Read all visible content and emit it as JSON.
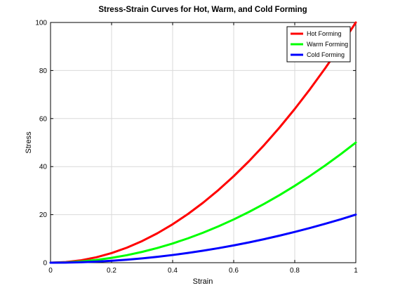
{
  "chart_data": {
    "type": "line",
    "title": "Stress-Strain Curves for Hot, Warm, and Cold Forming",
    "xlabel": "Strain",
    "ylabel": "Stress",
    "xlim": [
      0,
      1
    ],
    "ylim": [
      0,
      100
    ],
    "xticks": [
      0,
      0.2,
      0.4,
      0.6,
      0.8,
      1
    ],
    "xtick_labels": [
      "0",
      "0.2",
      "0.4",
      "0.6",
      "0.8",
      "1"
    ],
    "yticks": [
      0,
      20,
      40,
      60,
      80,
      100
    ],
    "ytick_labels": [
      "0",
      "20",
      "40",
      "60",
      "80",
      "100"
    ],
    "grid": true,
    "legend_position": "top-right",
    "x": [
      0,
      0.05,
      0.1,
      0.15,
      0.2,
      0.25,
      0.3,
      0.35,
      0.4,
      0.45,
      0.5,
      0.55,
      0.6,
      0.65,
      0.7,
      0.75,
      0.8,
      0.85,
      0.9,
      0.95,
      1
    ],
    "series": [
      {
        "name": "Hot Forming",
        "color": "#ff0000",
        "values": [
          0,
          0.25,
          1,
          2.25,
          4,
          6.25,
          9,
          12.25,
          16,
          20.25,
          25,
          30.25,
          36,
          42.25,
          49,
          56.25,
          64,
          72.25,
          81,
          90.25,
          100
        ]
      },
      {
        "name": "Warm Forming",
        "color": "#00ff00",
        "values": [
          0,
          0.125,
          0.5,
          1.125,
          2,
          3.125,
          4.5,
          6.125,
          8,
          10.125,
          12.5,
          15.125,
          18,
          21.125,
          24.5,
          28.125,
          32,
          36.125,
          40.5,
          45.125,
          50
        ]
      },
      {
        "name": "Cold Forming",
        "color": "#0000ff",
        "values": [
          0,
          0.05,
          0.2,
          0.45,
          0.8,
          1.25,
          1.8,
          2.45,
          3.2,
          4.05,
          5,
          6.05,
          7.2,
          8.45,
          9.8,
          11.25,
          12.8,
          14.45,
          16.2,
          18.05,
          20
        ]
      }
    ]
  }
}
